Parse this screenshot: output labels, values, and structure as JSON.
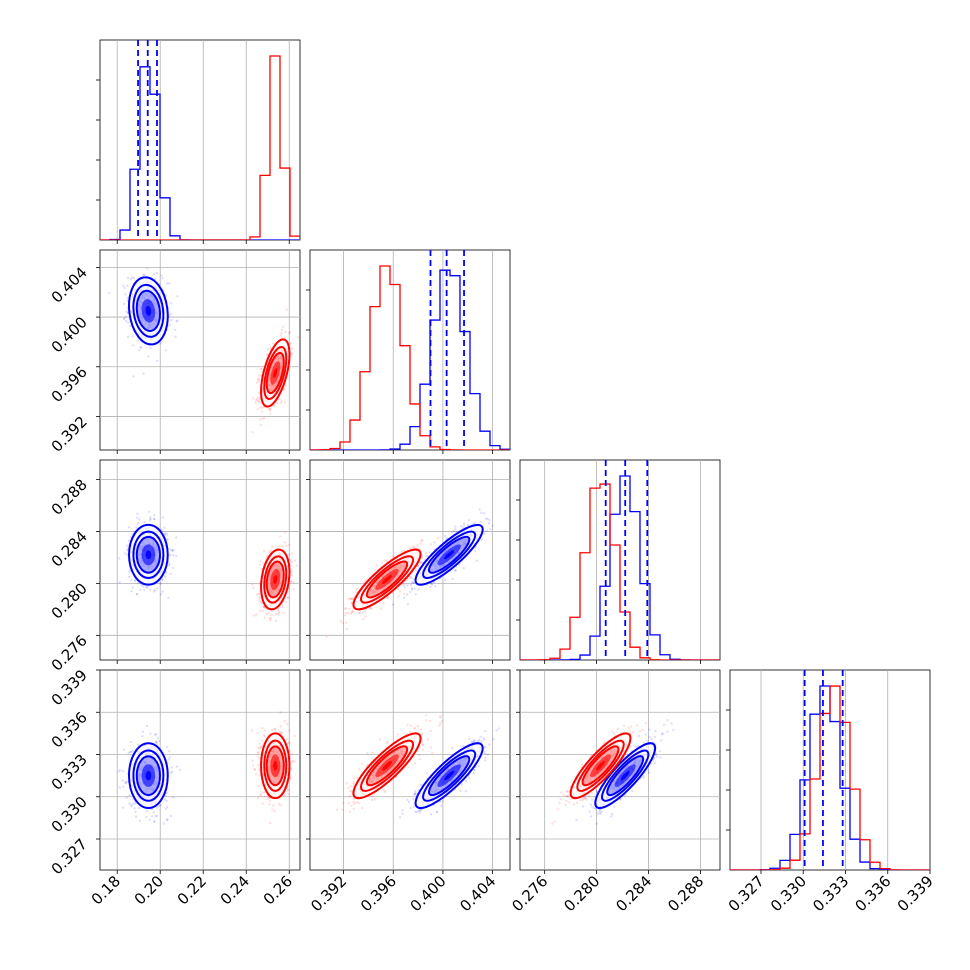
{
  "chart_data": {
    "type": "corner",
    "grid": true,
    "colors": {
      "blue": "#0000ff",
      "red": "#ff0000"
    },
    "params": [
      {
        "ticks": [
          "0.18",
          "0.20",
          "0.22",
          "0.24",
          "0.26"
        ],
        "tick_values": [
          0.18,
          0.2,
          0.22,
          0.24,
          0.26
        ],
        "lim": [
          0.172,
          0.265
        ]
      },
      {
        "ticks": [
          "0.392",
          "0.396",
          "0.400",
          "0.404"
        ],
        "tick_values": [
          0.392,
          0.396,
          0.4,
          0.404
        ],
        "lim": [
          0.3893,
          0.4054
        ]
      },
      {
        "ticks": [
          "0.276",
          "0.280",
          "0.284",
          "0.288"
        ],
        "tick_values": [
          0.276,
          0.28,
          0.284,
          0.288
        ],
        "lim": [
          0.2741,
          0.2895
        ]
      },
      {
        "ticks": [
          "0.327",
          "0.330",
          "0.333",
          "0.336",
          "0.339"
        ],
        "tick_values": [
          0.327,
          0.33,
          0.333,
          0.336,
          0.339
        ],
        "lim": [
          0.3248,
          0.339
        ]
      }
    ],
    "series": [
      {
        "color": "blue",
        "mean": [
          0.1945,
          0.4005,
          0.2822,
          0.3315
        ],
        "std": [
          0.0045,
          0.00135,
          0.00115,
          0.00115
        ]
      },
      {
        "color": "red",
        "mean": [
          0.2535,
          0.3955,
          0.2803,
          0.3322
        ],
        "std": [
          0.0033,
          0.00135,
          0.00115,
          0.00115
        ]
      }
    ],
    "correlations": {
      "blue": [
        [
          1,
          -0.15,
          0.0,
          0.0
        ],
        [
          -0.15,
          1,
          0.85,
          0.85
        ],
        [
          0.0,
          0.85,
          1,
          0.85
        ],
        [
          0.0,
          0.85,
          0.85,
          1
        ]
      ],
      "red": [
        [
          1,
          0.55,
          0.25,
          0.0
        ],
        [
          0.55,
          1,
          0.85,
          0.85
        ],
        [
          0.25,
          0.85,
          1,
          0.85
        ],
        [
          0.0,
          0.85,
          0.85,
          1
        ]
      ]
    },
    "quantile_lines": {
      "color": "blue",
      "values": [
        [
          0.1897,
          0.1942,
          0.1985
        ],
        [
          0.399,
          0.4003,
          0.4017
        ],
        [
          0.2807,
          0.2822,
          0.2839
        ],
        [
          0.3301,
          0.3314,
          0.3328
        ]
      ]
    }
  }
}
